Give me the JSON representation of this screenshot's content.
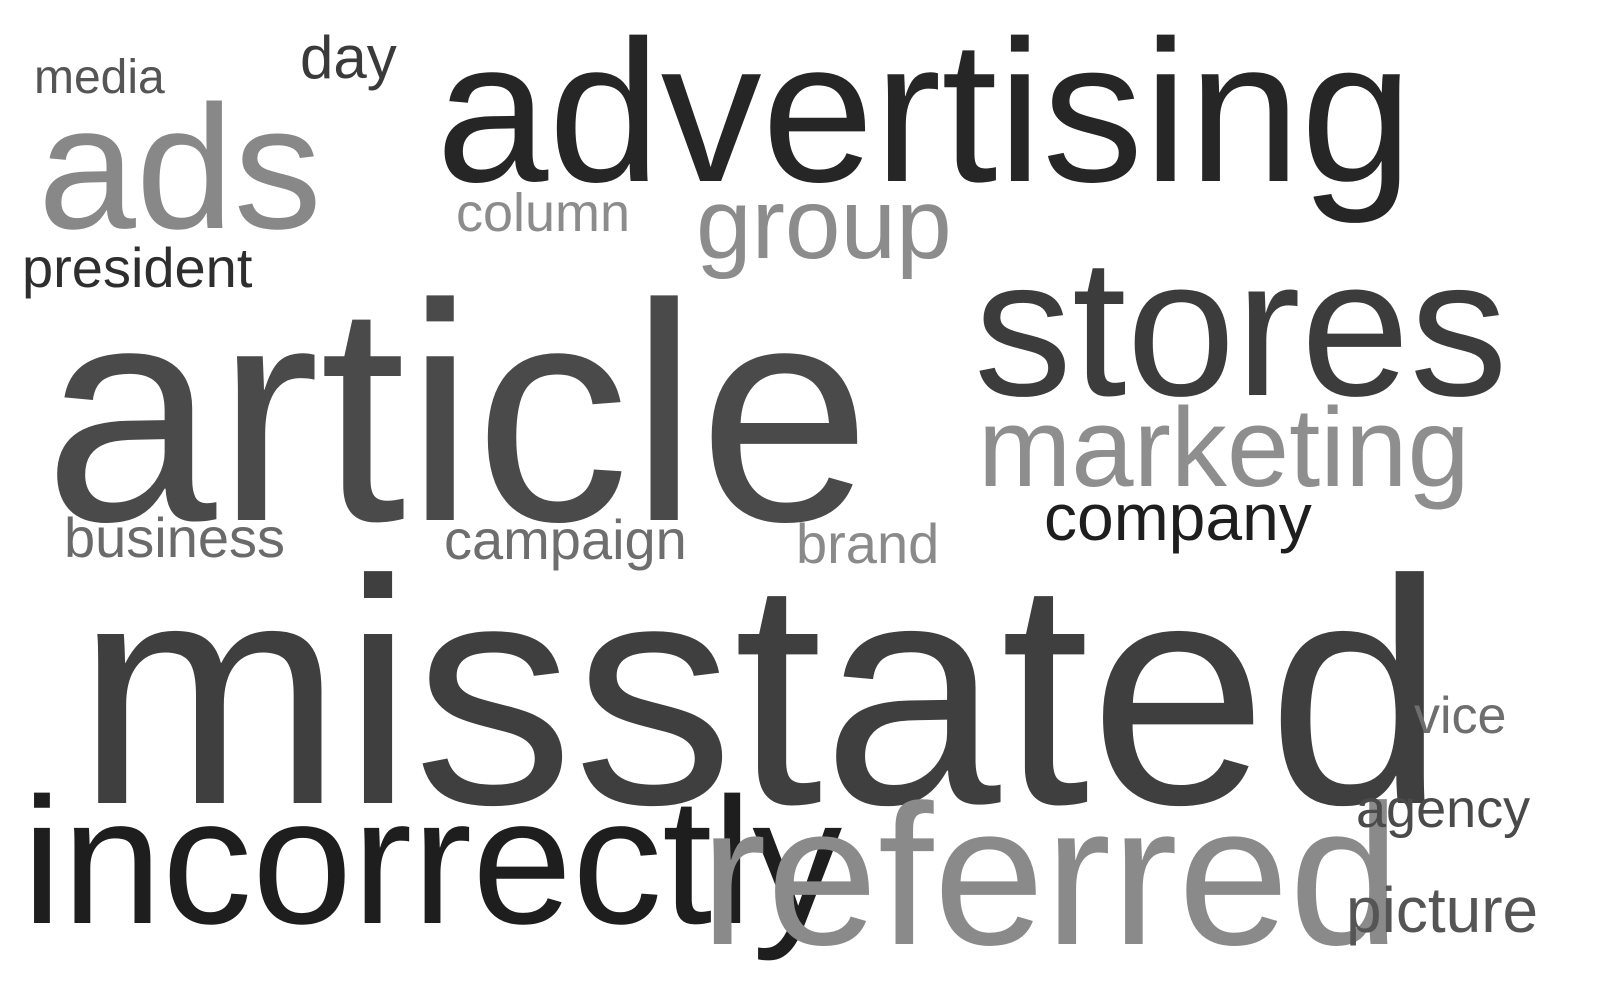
{
  "words": [
    {
      "id": "media",
      "text": "media",
      "color": "#555555"
    },
    {
      "id": "day",
      "text": "day",
      "color": "#3a3a3a"
    },
    {
      "id": "advertising",
      "text": "advertising",
      "color": "#262626"
    },
    {
      "id": "ads",
      "text": "ads",
      "color": "#888888"
    },
    {
      "id": "column",
      "text": "column",
      "color": "#8c8c8c"
    },
    {
      "id": "group",
      "text": "group",
      "color": "#8c8c8c"
    },
    {
      "id": "president",
      "text": "president",
      "color": "#2e2e2e"
    },
    {
      "id": "stores",
      "text": "stores",
      "color": "#3c3c3c"
    },
    {
      "id": "article",
      "text": "article",
      "color": "#4a4a4a"
    },
    {
      "id": "marketing",
      "text": "marketing",
      "color": "#8e8e8e"
    },
    {
      "id": "company",
      "text": "company",
      "color": "#1e1e1e"
    },
    {
      "id": "business",
      "text": "business",
      "color": "#6a6a6a"
    },
    {
      "id": "campaign",
      "text": "campaign",
      "color": "#6e6e6e"
    },
    {
      "id": "brand",
      "text": "brand",
      "color": "#8a8a8a"
    },
    {
      "id": "misstated",
      "text": "misstated",
      "color": "#3f3f3f"
    },
    {
      "id": "vice",
      "text": "vice",
      "color": "#6e6e6e"
    },
    {
      "id": "incorrectly",
      "text": "incorrectly",
      "color": "#1e1e1e"
    },
    {
      "id": "referred",
      "text": "referred",
      "color": "#8a8a8a"
    },
    {
      "id": "agency",
      "text": "agency",
      "color": "#4a4a4a"
    },
    {
      "id": "picture",
      "text": "picture",
      "color": "#555555"
    }
  ]
}
